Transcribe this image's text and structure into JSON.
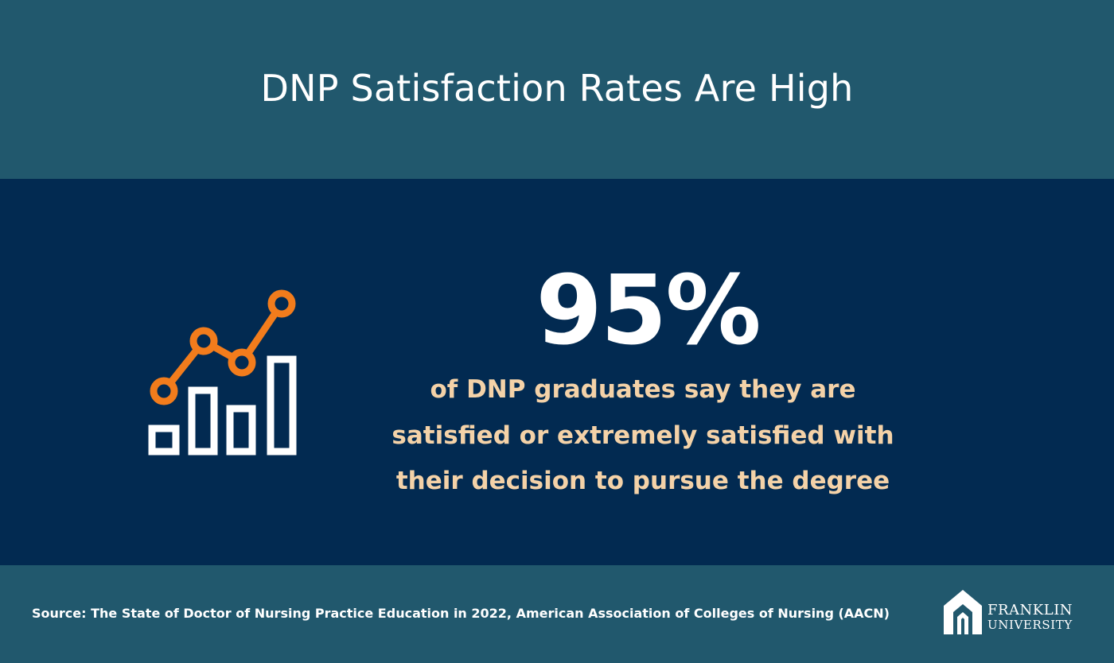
{
  "header": {
    "title": "DNP Satisfaction Rates Are High"
  },
  "stat": {
    "value": "95%",
    "description_lines": [
      "of DNP graduates say they are",
      "satisfied or extremely satisfied with",
      "their decision to pursue the degree"
    ]
  },
  "icon": {
    "name": "bar-line-chart-icon",
    "bar_color": "#ffffff",
    "line_color": "#f27c1c"
  },
  "footer": {
    "source": "Source: The State of Doctor of Nursing Practice Education in 2022, American Association of Colleges of Nursing (AACN)",
    "logo": {
      "line1": "FRANKLIN",
      "line2": "UNIVERSITY"
    }
  },
  "colors": {
    "teal_band": "#21586d",
    "navy_band": "#022a51",
    "accent_text": "#f4d2a8",
    "orange": "#f27c1c"
  }
}
